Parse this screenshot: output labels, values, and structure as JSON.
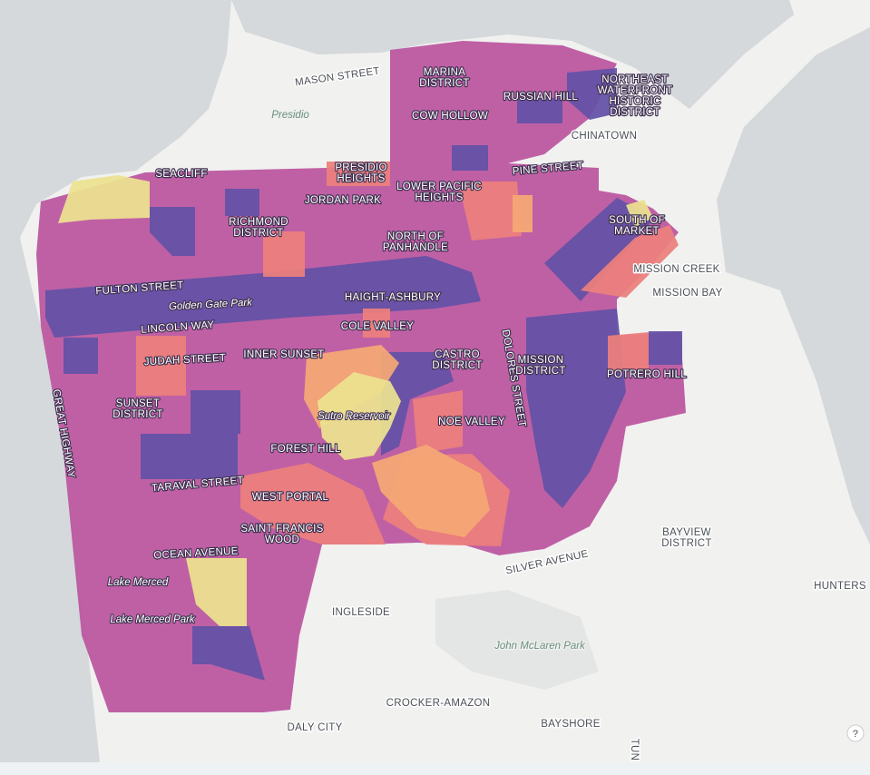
{
  "map": {
    "labels": [
      {
        "lines": [
          "MASON STREET"
        ]
      },
      {
        "lines": [
          "Presidio"
        ]
      },
      {
        "lines": [
          "SEACLIFF"
        ]
      },
      {
        "lines": [
          "MARINA",
          "DISTRICT"
        ]
      },
      {
        "lines": [
          "COW HOLLOW"
        ]
      },
      {
        "lines": [
          "RUSSIAN HILL"
        ]
      },
      {
        "lines": [
          "NORTHEAST",
          "WATERFRONT",
          "HISTORIC",
          "DISTRICT"
        ]
      },
      {
        "lines": [
          "CHINATOWN"
        ]
      },
      {
        "lines": [
          "PRESIDIO",
          "HEIGHTS"
        ]
      },
      {
        "lines": [
          "LOWER PACIFIC",
          "HEIGHTS"
        ]
      },
      {
        "lines": [
          "JORDAN PARK"
        ]
      },
      {
        "lines": [
          "PINE STREET"
        ]
      },
      {
        "lines": [
          "RICHMOND",
          "DISTRICT"
        ]
      },
      {
        "lines": [
          "NORTH OF",
          "PANHANDLE"
        ]
      },
      {
        "lines": [
          "SOUTH OF",
          "MARKET"
        ]
      },
      {
        "lines": [
          "MISSION CREEK"
        ]
      },
      {
        "lines": [
          "MISSION BAY"
        ]
      },
      {
        "lines": [
          "FULTON STREET"
        ]
      },
      {
        "lines": [
          "Golden Gate Park"
        ]
      },
      {
        "lines": [
          "HAIGHT-ASHBURY"
        ]
      },
      {
        "lines": [
          "LINCOLN WAY"
        ]
      },
      {
        "lines": [
          "COLE VALLEY"
        ]
      },
      {
        "lines": [
          "JUDAH STREET"
        ]
      },
      {
        "lines": [
          "INNER SUNSET"
        ]
      },
      {
        "lines": [
          "CASTRO",
          "DISTRICT"
        ]
      },
      {
        "lines": [
          "DOLORES STREET"
        ]
      },
      {
        "lines": [
          "MISSION",
          "DISTRICT"
        ]
      },
      {
        "lines": [
          "POTRERO HILL"
        ]
      },
      {
        "lines": [
          "SUNSET",
          "DISTRICT"
        ]
      },
      {
        "lines": [
          "GREAT HIGHWAY"
        ]
      },
      {
        "lines": [
          "Sutro Reservoir"
        ]
      },
      {
        "lines": [
          "NOE VALLEY"
        ]
      },
      {
        "lines": [
          "FOREST HILL"
        ]
      },
      {
        "lines": [
          "TARAVAL STREET"
        ]
      },
      {
        "lines": [
          "WEST PORTAL"
        ]
      },
      {
        "lines": [
          "SAINT FRANCIS",
          "WOOD"
        ]
      },
      {
        "lines": [
          "BAYVIEW",
          "DISTRICT"
        ]
      },
      {
        "lines": [
          "SILVER AVENUE"
        ]
      },
      {
        "lines": [
          "OCEAN AVENUE"
        ]
      },
      {
        "lines": [
          "Lake Merced"
        ]
      },
      {
        "lines": [
          "Lake Merced Park"
        ]
      },
      {
        "lines": [
          "HUNTERS"
        ]
      },
      {
        "lines": [
          "INGLESIDE"
        ]
      },
      {
        "lines": [
          "John McLaren Park"
        ]
      },
      {
        "lines": [
          "CROCKER-AMAZON"
        ]
      },
      {
        "lines": [
          "DALY CITY"
        ]
      },
      {
        "lines": [
          "BAYSHORE"
        ]
      },
      {
        "lines": [
          "TUN"
        ]
      }
    ],
    "help_button": "?"
  }
}
